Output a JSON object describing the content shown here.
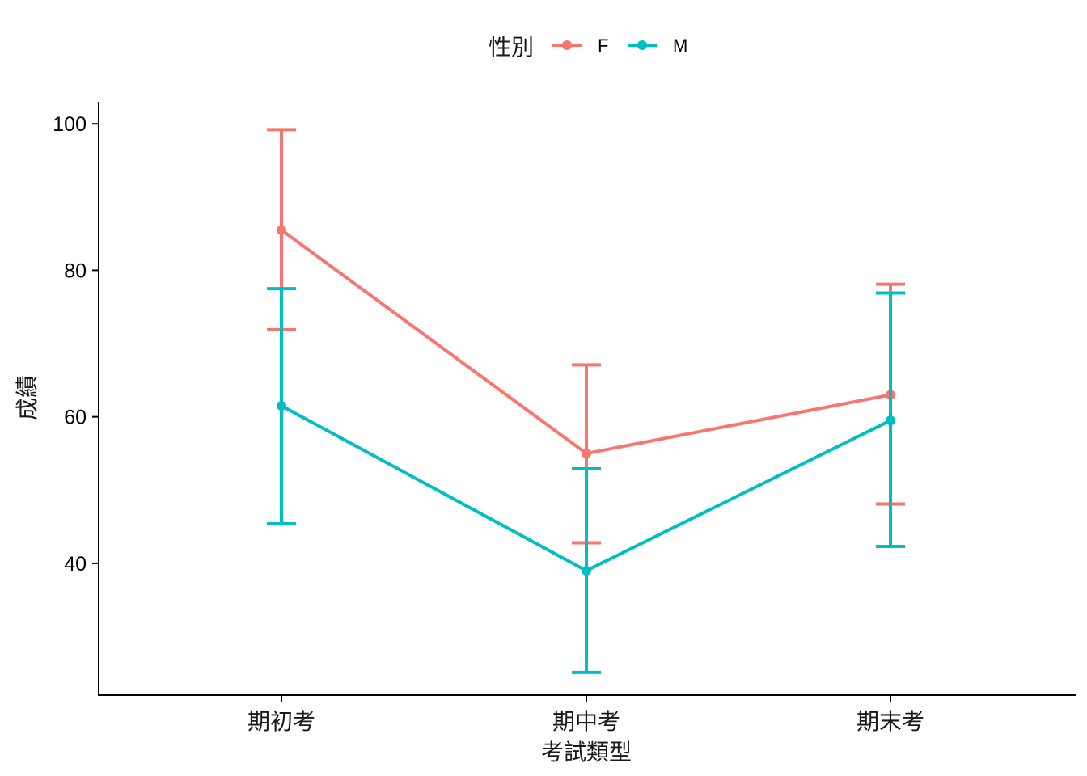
{
  "chart_data": {
    "type": "line",
    "xlabel": "考試類型",
    "ylabel": "成績",
    "categories": [
      "期初考",
      "期中考",
      "期末考"
    ],
    "yticks": [
      40,
      60,
      80,
      100
    ],
    "ylim": [
      22,
      103
    ],
    "grid": false,
    "legend": {
      "title": "性別",
      "position": "top"
    },
    "series": [
      {
        "name": "F",
        "color": "#F8766D",
        "values": [
          85.5,
          55.0,
          63.0
        ],
        "error_low": [
          71.9,
          42.8,
          48.1
        ],
        "error_high": [
          99.2,
          67.1,
          78.1
        ]
      },
      {
        "name": "M",
        "color": "#00BFC4",
        "values": [
          61.5,
          39.0,
          59.5
        ],
        "error_low": [
          45.4,
          25.1,
          42.3
        ],
        "error_high": [
          77.5,
          52.9,
          76.9
        ]
      }
    ]
  }
}
